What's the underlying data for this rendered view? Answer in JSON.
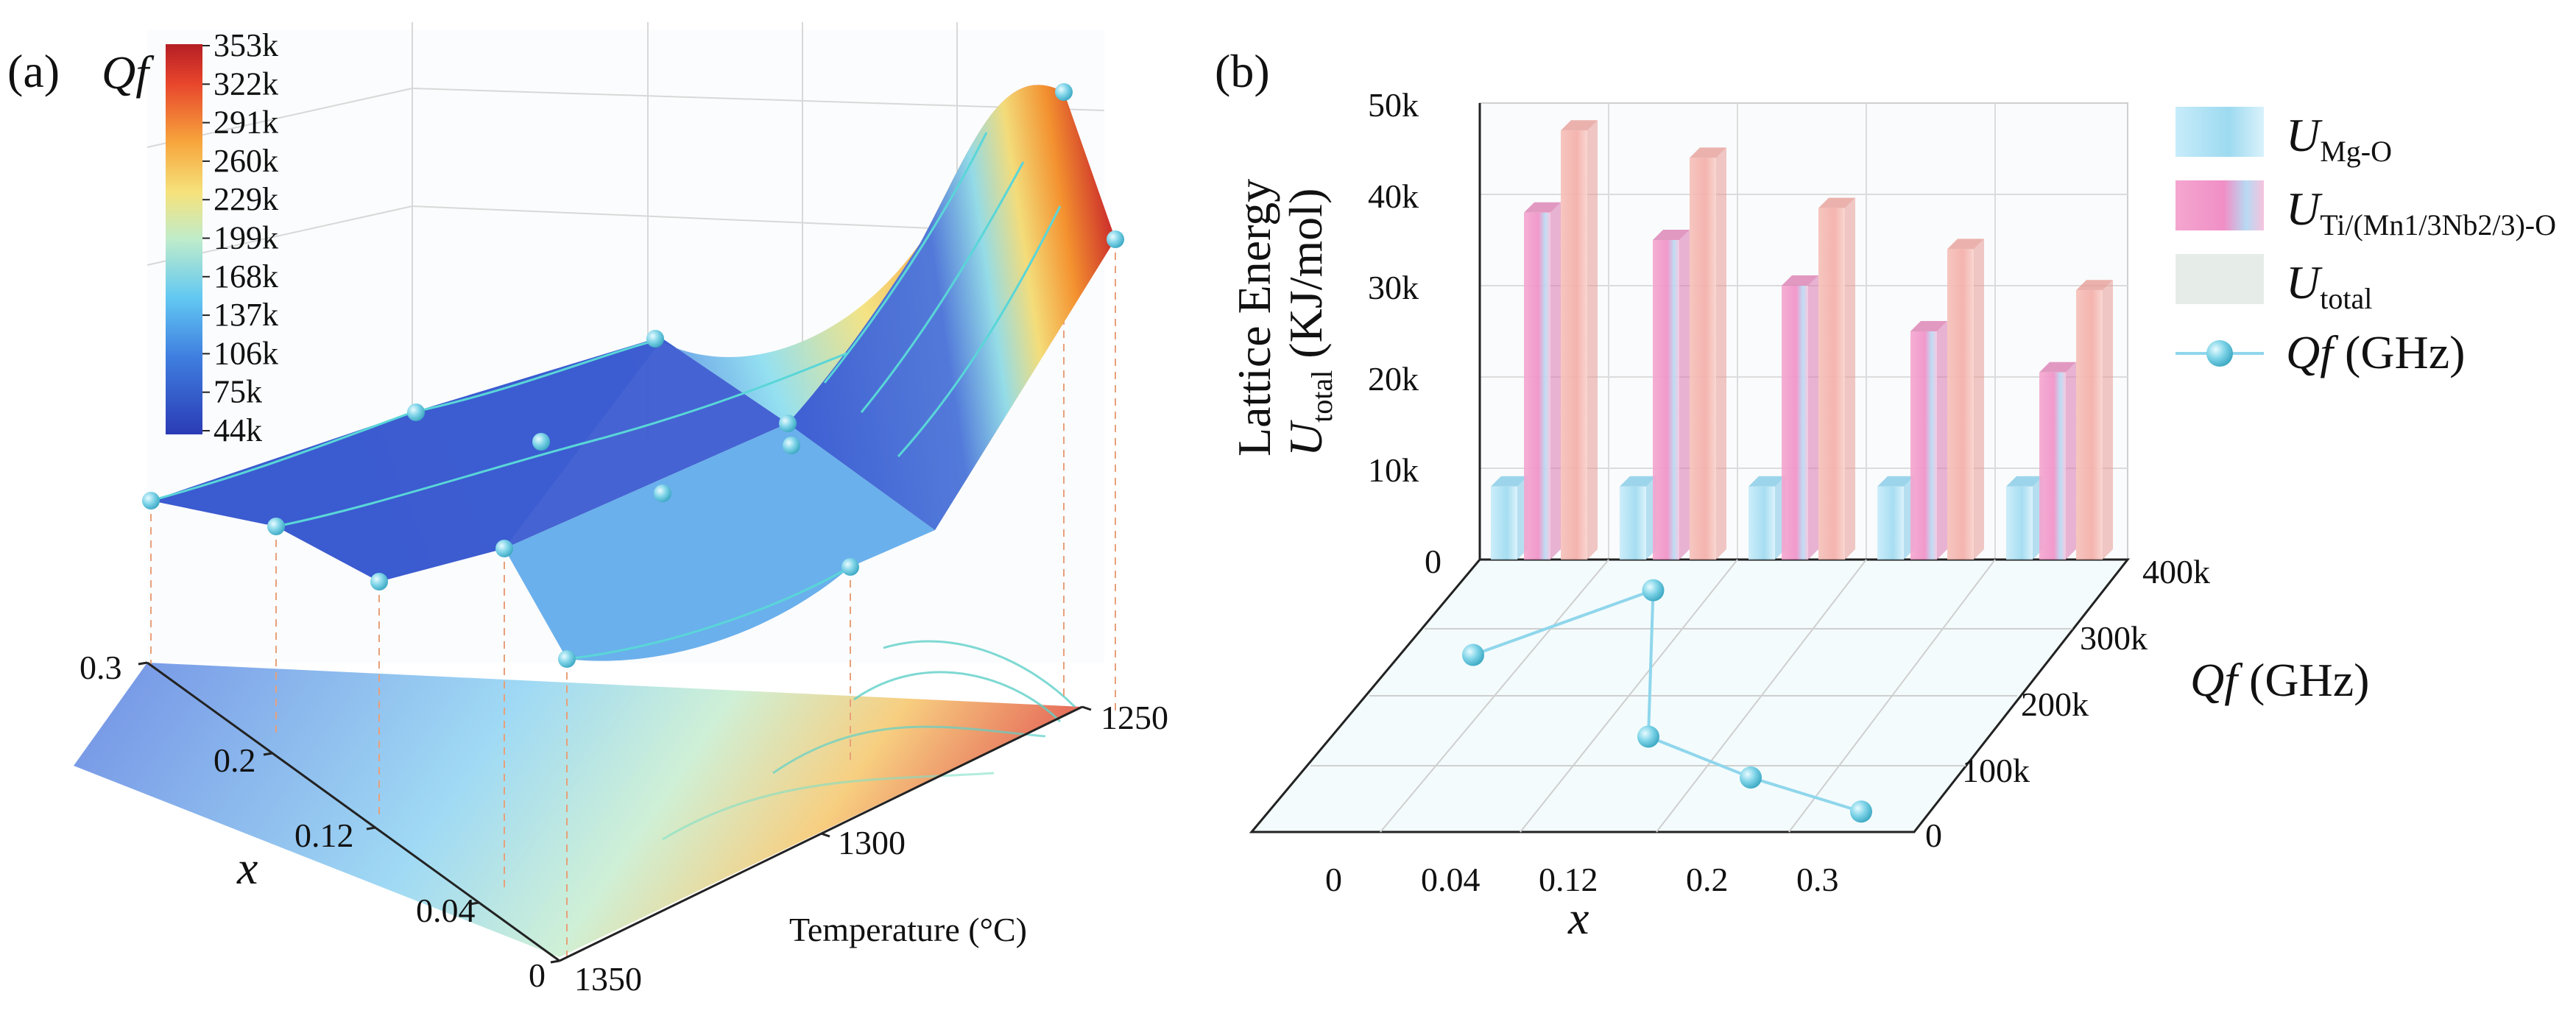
{
  "panel_a": {
    "label": "(a)",
    "colorbar_title": "Qf",
    "colorbar_ticks": [
      "353k",
      "322k",
      "291k",
      "260k",
      "229k",
      "199k",
      "168k",
      "137k",
      "106k",
      "75k",
      "44k"
    ],
    "x_axis_label": "x",
    "x_ticks": [
      "0.3",
      "0.2",
      "0.12",
      "0.04",
      "0"
    ],
    "temp_axis_label": "Temperature (°C)",
    "temp_ticks": [
      "1250",
      "1300",
      "1350"
    ]
  },
  "panel_b": {
    "label": "(b)",
    "y_axis_label_line1": "Lattice Energy",
    "y_axis_label_u": "U",
    "y_axis_label_sub": "total",
    "y_axis_label_unit": " (KJ/mol)",
    "y_ticks": [
      "50k",
      "40k",
      "30k",
      "20k",
      "10k",
      "0"
    ],
    "x_axis_label": "x",
    "x_ticks": [
      "0",
      "0.04",
      "0.12",
      "0.2",
      "0.3"
    ],
    "z_axis_label_qf": "Qf",
    "z_axis_label_unit": " (GHz)",
    "z_ticks": [
      "400k",
      "300k",
      "200k",
      "100k",
      "0"
    ],
    "legend": [
      {
        "u": "U",
        "sub": "Mg-O"
      },
      {
        "u": "U",
        "sub": "Ti/(Mn1/3Nb2/3)-O"
      },
      {
        "u": "U",
        "sub": "total"
      },
      {
        "u": "Qf",
        "sub": " (GHz)"
      }
    ]
  },
  "colors": {
    "mgo": "#9fdcf0",
    "ti": "#f39ac8",
    "total": "#f6b3ae",
    "qf_line": "#8fd6ec",
    "surface_low": "#3a56c8",
    "surface_high": "#d6302c"
  },
  "chart_data": [
    {
      "type": "surface",
      "title": "",
      "xlabel": "x",
      "ylabel": "Temperature (°C)",
      "zlabel": "Qf",
      "x": [
        0,
        0.04,
        0.12,
        0.2,
        0.3
      ],
      "temperature": [
        1250,
        1300,
        1350
      ],
      "zlim": [
        44000,
        353000
      ]
    },
    {
      "type": "bar",
      "title": "",
      "xlabel": "x",
      "ylabel": "Lattice Energy U_total (KJ/mol)",
      "categories": [
        "0",
        "0.04",
        "0.12",
        "0.2",
        "0.3"
      ],
      "ylim": [
        0,
        50000
      ],
      "series": [
        {
          "name": "U_Mg-O",
          "values": [
            8000,
            8000,
            8000,
            8000,
            8000
          ]
        },
        {
          "name": "U_Ti/(Mn1/3Nb2/3)-O",
          "values": [
            38000,
            35000,
            30000,
            25000,
            20500
          ]
        },
        {
          "name": "U_total",
          "values": [
            47000,
            44000,
            38500,
            34000,
            29500
          ]
        }
      ]
    },
    {
      "type": "line",
      "title": "",
      "xlabel": "x",
      "ylabel": "Qf (GHz)",
      "x": [
        0,
        0.04,
        0.12,
        0.2,
        0.3
      ],
      "ylim": [
        0,
        400000
      ],
      "series": [
        {
          "name": "Qf (GHz)",
          "values": [
            260000,
            355000,
            140000,
            80000,
            30000
          ]
        }
      ]
    }
  ]
}
